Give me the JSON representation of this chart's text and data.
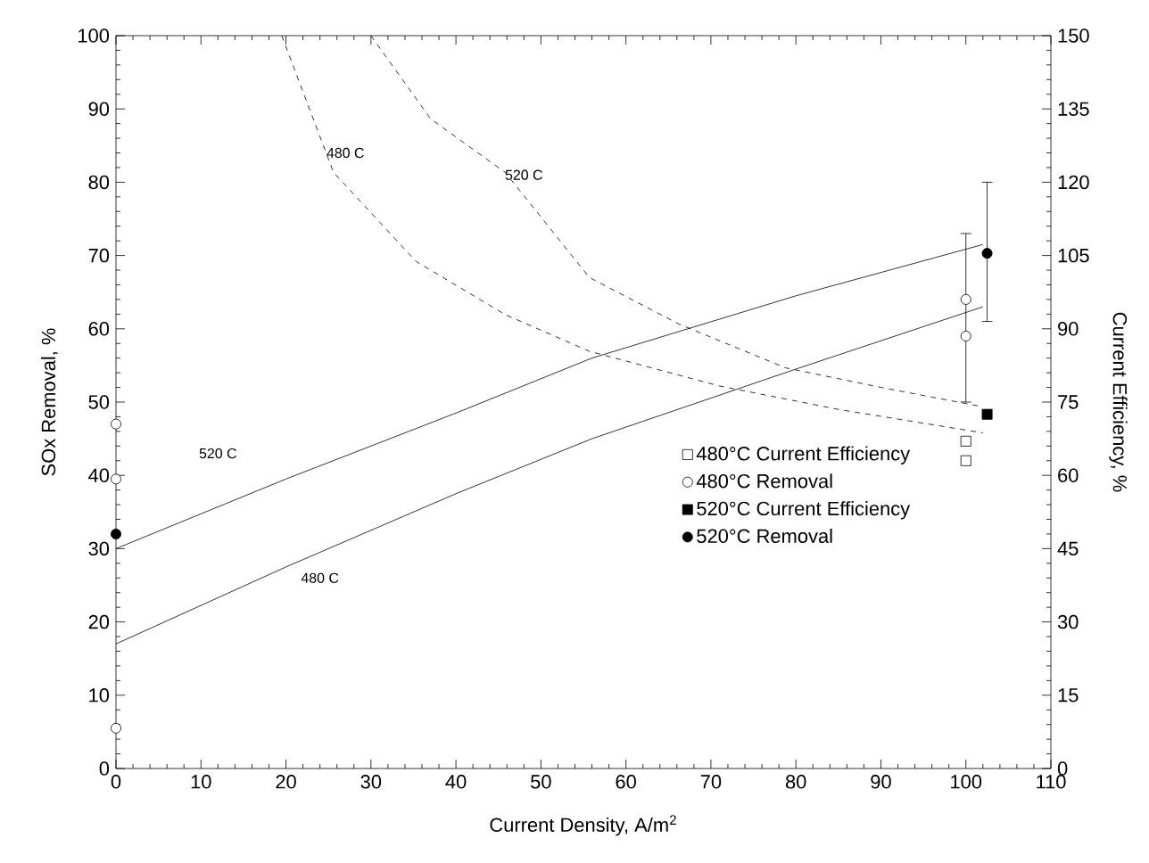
{
  "chart_data": {
    "type": "scatter",
    "xlabel": "Current Density, A/m$^{2}$",
    "ylabel": "SOx Removal, %",
    "y2label": "Current Efficiency, %",
    "xlim": [
      0,
      110
    ],
    "xticks": [
      0,
      10,
      20,
      30,
      40,
      50,
      60,
      70,
      80,
      90,
      100,
      110
    ],
    "ylim": [
      0,
      100
    ],
    "yticks": [
      0,
      10,
      20,
      30,
      40,
      50,
      60,
      70,
      80,
      90,
      100
    ],
    "y2lim": [
      0,
      150
    ],
    "y2ticks": [
      0,
      15,
      30,
      45,
      60,
      75,
      90,
      105,
      120,
      135,
      150
    ],
    "legend": "right",
    "grid": false,
    "series": [
      {
        "type": "line",
        "line_style": "solid",
        "color": "#000000",
        "x": [
          0,
          20,
          40,
          56,
          80,
          102
        ],
        "values": [
          30,
          39.5,
          48.5,
          56,
          64.5,
          71.5
        ]
      },
      {
        "type": "line",
        "line_style": "solid",
        "color": "#000000",
        "x": [
          0,
          20,
          40,
          56,
          80,
          102
        ],
        "values": [
          17,
          27.5,
          37.5,
          45,
          54.5,
          63
        ]
      },
      {
        "type": "line",
        "line_style": "dashed",
        "axis": "y2",
        "color": "#000000",
        "x": [
          19.5,
          25.6,
          35.3,
          45.8,
          55.7,
          71,
          85,
          102
        ],
        "values": [
          150,
          122,
          103.8,
          92.9,
          85.4,
          78.3,
          73.5,
          68.7
        ]
      },
      {
        "type": "line",
        "line_style": "dashed",
        "axis": "y2",
        "color": "#000000",
        "x": [
          30,
          37,
          45.8,
          55.7,
          66.2,
          78.8,
          90,
          101.5
        ],
        "values": [
          150,
          133,
          122,
          100.5,
          91,
          82,
          78,
          74.2
        ]
      },
      {
        "name": "480°C Current Efficiency",
        "marker": "square",
        "axis": "y2",
        "color": "#ffffff",
        "x": [
          100,
          100
        ],
        "values": [
          67,
          63
        ]
      },
      {
        "name": "480°C Removal",
        "marker": "circle",
        "color": "#ffffff",
        "x": [
          0,
          0,
          0,
          100,
          100
        ],
        "values": [
          47,
          39.5,
          5.5,
          64,
          59
        ],
        "errors": [
          null,
          null,
          null,
          [
            50,
            73
          ],
          null
        ]
      },
      {
        "name": "520°C Current Efficiency",
        "marker": "square",
        "axis": "y2",
        "color": "#000000",
        "x": [
          102.5
        ],
        "values": [
          72.5
        ]
      },
      {
        "name": "520°C Removal",
        "marker": "circle",
        "color": "#000000",
        "x": [
          0,
          102.5
        ],
        "values": [
          32,
          70.3
        ],
        "errors": [
          null,
          [
            61,
            80
          ]
        ]
      }
    ],
    "annotations": [
      "480 C",
      "520 C",
      "520 C",
      "480 C"
    ]
  }
}
